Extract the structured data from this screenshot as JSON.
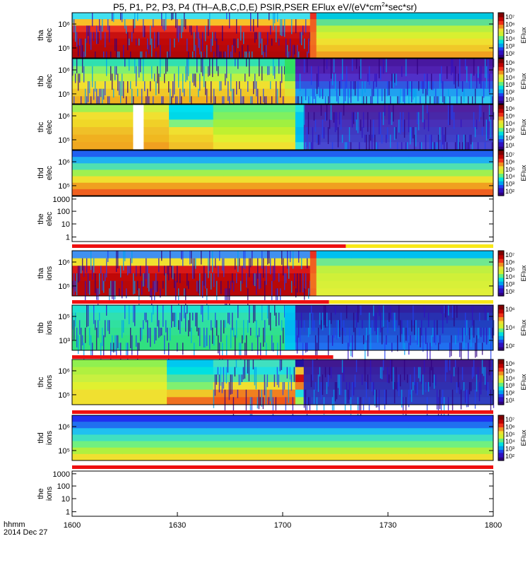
{
  "title": "P5, P1, P2, P3, P4 (TH–A,B,C,D,E) PSIR,PSER EFlux eV/(eV*cm",
  "title_sup": "2",
  "title_tail": "*sec*sr)",
  "footer": {
    "line1": "hhmm",
    "line2": "2014 Dec 27"
  },
  "colorbar_label": "EFlux",
  "chart_data": {
    "type": "heatmap",
    "x_ticks": [
      "1600",
      "1630",
      "1700",
      "1730",
      "1800"
    ],
    "x_range": [
      1600,
      1800
    ],
    "panels": [
      {
        "name": "tha_elec",
        "ylabel": [
          "tha",
          "elec"
        ],
        "yticks": [
          "10⁶",
          "10⁵"
        ],
        "colorbar_ticks": [
          "10⁷",
          "10⁶",
          "10⁵",
          "10⁴",
          "10³",
          "10²"
        ],
        "blank": false
      },
      {
        "name": "thb_elec",
        "ylabel": [
          "thb",
          "elec"
        ],
        "yticks": [
          "10⁶",
          "10⁵"
        ],
        "colorbar_ticks": [
          "10⁶",
          "10⁵",
          "10⁴",
          "10³",
          "10²",
          "10¹"
        ],
        "blank": false
      },
      {
        "name": "thc_elec",
        "ylabel": [
          "thc",
          "elec"
        ],
        "yticks": [
          "10⁶",
          "10⁵"
        ],
        "colorbar_ticks": [
          "10⁶",
          "10⁵",
          "10⁴",
          "10³",
          "10²",
          "10¹"
        ],
        "blank": false
      },
      {
        "name": "thd_elec",
        "ylabel": [
          "thd",
          "elec"
        ],
        "yticks": [
          "10⁶",
          "10⁵"
        ],
        "colorbar_ticks": [
          "10⁷",
          "10⁶",
          "10⁵",
          "10⁴",
          "10³",
          "10²"
        ],
        "blank": false
      },
      {
        "name": "the_elec",
        "ylabel": [
          "the",
          "elec"
        ],
        "yticks": [
          "1000",
          "100",
          "10",
          "1"
        ],
        "colorbar_ticks": [],
        "blank": true
      },
      {
        "name": "tha_ions",
        "ylabel": [
          "tha",
          "ions"
        ],
        "yticks": [
          "10⁶",
          "10⁵"
        ],
        "colorbar_ticks": [
          "10⁷",
          "10⁶",
          "10⁵",
          "10⁴",
          "10³",
          "10²"
        ],
        "blank": false
      },
      {
        "name": "thb_ions",
        "ylabel": [
          "thb",
          "ions"
        ],
        "yticks": [
          "10⁵",
          "10³"
        ],
        "colorbar_ticks": [
          "10⁶",
          "10⁴",
          "10²"
        ],
        "blank": false
      },
      {
        "name": "thc_ions",
        "ylabel": [
          "thc",
          "ions"
        ],
        "yticks": [
          "10⁶",
          "10⁵"
        ],
        "colorbar_ticks": [
          "10⁶",
          "10⁵",
          "10⁴",
          "10³",
          "10²",
          "10¹"
        ],
        "blank": false
      },
      {
        "name": "thd_ions",
        "ylabel": [
          "thd",
          "ions"
        ],
        "yticks": [
          "10⁶",
          "10⁵"
        ],
        "colorbar_ticks": [
          "10⁷",
          "10⁶",
          "10⁵",
          "10⁴",
          "10³",
          "10²"
        ],
        "blank": false
      },
      {
        "name": "the_ions",
        "ylabel": [
          "the",
          "ions"
        ],
        "yticks": [
          "1000",
          "100",
          "10",
          "1"
        ],
        "colorbar_ticks": [],
        "blank": true
      }
    ],
    "heatmaps": [
      {
        "rows": 7,
        "segments": [
          {
            "x0": 1600,
            "x1": 1713,
            "colors": [
              "#40e0f0",
              "#f8c028",
              "#e83020",
              "#c81010",
              "#c00808",
              "#b80808",
              "#b00808"
            ]
          },
          {
            "x0": 1713,
            "x1": 1716,
            "colors": [
              "#e83020",
              "#f06020",
              "#f06020",
              "#f07020",
              "#f07020",
              "#f06820",
              "#f06820"
            ]
          },
          {
            "x0": 1716,
            "x1": 1800,
            "colors": [
              "#00c8e0",
              "#60e090",
              "#b8f040",
              "#d8f030",
              "#f0e030",
              "#f0c828",
              "#f0a020"
            ]
          }
        ]
      },
      {
        "rows": 6,
        "segments": [
          {
            "x0": 1600,
            "x1": 1701,
            "colors": [
              "#30e0b0",
              "#80f070",
              "#c0f040",
              "#f0e030",
              "#f0c828",
              "#f0b020"
            ]
          },
          {
            "x0": 1701,
            "x1": 1706,
            "colors": [
              "#30e060",
              "#30e060",
              "#50e060",
              "#c0f040",
              "#e0e030",
              "#f0c828"
            ]
          },
          {
            "x0": 1706,
            "x1": 1800,
            "colors": [
              "#4818a0",
              "#5020b0",
              "#5030c8",
              "#3058e0",
              "#20a0f0",
              "#30c8f0"
            ]
          }
        ]
      },
      {
        "rows": 6,
        "segments": [
          {
            "x0": 1600,
            "x1": 1629,
            "colors": [
              "#a0f050",
              "#f0e030",
              "#f0d828",
              "#f0c028",
              "#f0b020",
              "#f0a820"
            ]
          },
          {
            "x0": 1629,
            "x1": 1634,
            "colors": [
              "#ffffff",
              "#ffffff",
              "#ffffff",
              "#ffffff",
              "#ffffff",
              "#ffffff"
            ]
          },
          {
            "x0": 1634,
            "x1": 1646,
            "colors": [
              "#d0f040",
              "#f0e030",
              "#f0d028",
              "#f0c028",
              "#f0b820",
              "#f0a020"
            ]
          },
          {
            "x0": 1646,
            "x1": 1667,
            "colors": [
              "#00e0f0",
              "#00d8e8",
              "#80f080",
              "#f0e030",
              "#f0d028",
              "#f0c028"
            ]
          },
          {
            "x0": 1667,
            "x1": 1706,
            "colors": [
              "#60f080",
              "#80f060",
              "#a0f040",
              "#c0f030",
              "#e0f030",
              "#f0e030"
            ]
          },
          {
            "x0": 1706,
            "x1": 1710,
            "colors": [
              "#20e0e0",
              "#00c8f0",
              "#00c8f0",
              "#00b8f0",
              "#00c0f0",
              "#30e0e0"
            ]
          },
          {
            "x0": 1710,
            "x1": 1800,
            "colors": [
              "#5020a0",
              "#4828a8",
              "#4830b8",
              "#4038c0",
              "#4040c8",
              "#4848d0"
            ]
          }
        ]
      },
      {
        "rows": 7,
        "segments": [
          {
            "x0": 1600,
            "x1": 1800,
            "colors": [
              "#2060f0",
              "#20b0f0",
              "#50e0b0",
              "#a0f050",
              "#f0e030",
              "#f0a020",
              "#f06020"
            ]
          }
        ]
      },
      null,
      {
        "rows": 6,
        "segments": [
          {
            "x0": 1600,
            "x1": 1713,
            "colors": [
              "#4090f0",
              "#f0e030",
              "#d81818",
              "#c00808",
              "#b80808",
              "#b80808"
            ]
          },
          {
            "x0": 1713,
            "x1": 1716,
            "colors": [
              "#e83020",
              "#f06020",
              "#f06020",
              "#f07020",
              "#f07020",
              "#f06820"
            ]
          },
          {
            "x0": 1716,
            "x1": 1800,
            "colors": [
              "#00c0f0",
              "#70e890",
              "#c0f040",
              "#d0f038",
              "#d8f038",
              "#e0f038"
            ]
          }
        ]
      },
      {
        "rows": 6,
        "segments": [
          {
            "x0": 1600,
            "x1": 1701,
            "colors": [
              "#20e0d0",
              "#30e0b0",
              "#30e0a0",
              "#30e090",
              "#30e080",
              "#30e080"
            ]
          },
          {
            "x0": 1701,
            "x1": 1706,
            "colors": [
              "#00c8f0",
              "#00c0f0",
              "#00b8f0",
              "#00b8f0",
              "#00c0f0",
              "#00c8f0"
            ]
          },
          {
            "x0": 1706,
            "x1": 1800,
            "colors": [
              "#3020a0",
              "#2830b0",
              "#2040c0",
              "#2050d0",
              "#2060e0",
              "#2070f0"
            ]
          }
        ]
      },
      {
        "rows": 6,
        "segments": [
          {
            "x0": 1600,
            "x1": 1645,
            "colors": [
              "#90f050",
              "#b0f040",
              "#c8f040",
              "#e0f030",
              "#f0e030",
              "#f0e030"
            ]
          },
          {
            "x0": 1645,
            "x1": 1667,
            "colors": [
              "#00c8f0",
              "#00e0e0",
              "#50e0a0",
              "#80f070",
              "#f0c828",
              "#f07020"
            ]
          },
          {
            "x0": 1667,
            "x1": 1706,
            "colors": [
              "#40e0c0",
              "#20e0e0",
              "#50e0a0",
              "#f0e030",
              "#f08020",
              "#f05818"
            ]
          },
          {
            "x0": 1706,
            "x1": 1710,
            "colors": [
              "#2010a0",
              "#f0c030",
              "#d01010",
              "#f08020",
              "#20e0e0",
              "#a0f050"
            ]
          },
          {
            "x0": 1710,
            "x1": 1800,
            "colors": [
              "#401890",
              "#3820a0",
              "#3828a8",
              "#3030b0",
              "#3038b8",
              "#3040c0"
            ]
          }
        ]
      },
      {
        "rows": 7,
        "segments": [
          {
            "x0": 1600,
            "x1": 1800,
            "colors": [
              "#2030f0",
              "#2070f0",
              "#20c0f0",
              "#40e0c0",
              "#70f080",
              "#b0f040",
              "#f0e030"
            ]
          }
        ]
      },
      null
    ],
    "bars_after_panel": [
      {
        "panel": "the_elec",
        "segments": [
          {
            "x0": 1600,
            "x1": 1730,
            "color": "#ee1010"
          },
          {
            "x0": 1730,
            "x1": 1800,
            "color": "#f8e818"
          }
        ]
      },
      {
        "panel": "tha_ions",
        "segments": [
          {
            "x0": 1600,
            "x1": 1722,
            "color": "#ee1010"
          },
          {
            "x0": 1722,
            "x1": 1800,
            "color": "#f8e818"
          }
        ]
      },
      {
        "panel": "thb_ions",
        "segments": [
          {
            "x0": 1600,
            "x1": 1724,
            "color": "#ee1010"
          }
        ]
      },
      {
        "panel": "thc_ions",
        "segments": [
          {
            "x0": 1600,
            "x1": 1800,
            "color": "#ee1010"
          }
        ]
      },
      {
        "panel": "thd_ions",
        "segments": [
          {
            "x0": 1600,
            "x1": 1800,
            "color": "#ee1010"
          }
        ]
      }
    ]
  }
}
